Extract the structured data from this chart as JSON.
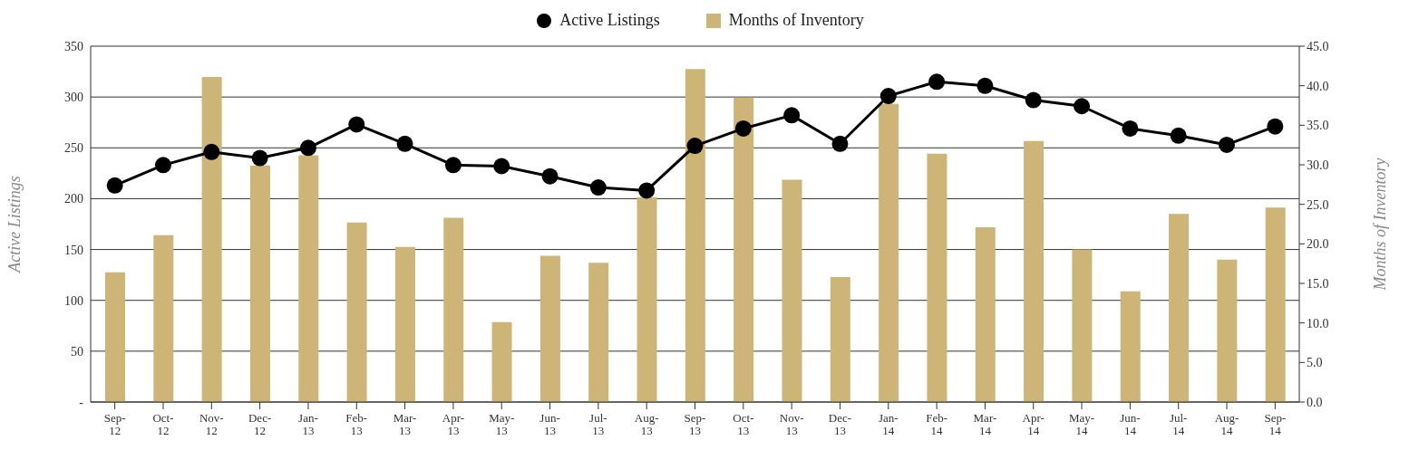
{
  "chart_data": {
    "type": "bar",
    "categories": [
      "Sep-12",
      "Oct-12",
      "Nov-12",
      "Dec-12",
      "Jan-13",
      "Feb-13",
      "Mar-13",
      "Apr-13",
      "May-13",
      "Jun-13",
      "Jul-13",
      "Aug-13",
      "Sep-13",
      "Oct-13",
      "Nov-13",
      "Dec-13",
      "Jan-14",
      "Feb-14",
      "Mar-14",
      "Apr-14",
      "May-14",
      "Jun-14",
      "Jul-14",
      "Aug-14",
      "Sep-14"
    ],
    "series": [
      {
        "name": "Active Listings",
        "type": "line",
        "color": "#000000",
        "marker": "circle",
        "line_style": "solid",
        "values": [
          213,
          233,
          246,
          240,
          250,
          273,
          254,
          233,
          232,
          222,
          211,
          208,
          252,
          269,
          282,
          254,
          301,
          315,
          311,
          297,
          291,
          269,
          262,
          253,
          271
        ]
      },
      {
        "name": "Months of Inventory",
        "axis": "y2",
        "color": "#cdb577",
        "values": [
          16.4,
          21.1,
          41.1,
          29.9,
          31.2,
          22.7,
          19.6,
          23.3,
          10.1,
          18.5,
          17.6,
          25.9,
          42.1,
          38.5,
          28.1,
          15.8,
          37.7,
          31.4,
          22.1,
          33.0,
          19.3,
          14.0,
          23.8,
          18.0,
          24.6
        ]
      }
    ],
    "ylabel": "Active Listings",
    "y2label": "Months of Inventory",
    "ylim": [
      0,
      350
    ],
    "yticks": [
      {
        "value": 0,
        "label": "-"
      },
      50,
      100,
      150,
      200,
      250,
      300,
      350
    ],
    "y2lim": [
      0,
      45
    ],
    "y2ticks": [
      {
        "value": 0,
        "label": "0.0"
      },
      {
        "value": 5,
        "label": "5.0"
      },
      {
        "value": 10,
        "label": "10.0"
      },
      {
        "value": 15,
        "label": "15.0"
      },
      {
        "value": 20,
        "label": "20.0"
      },
      {
        "value": 25,
        "label": "25.0"
      },
      {
        "value": 30,
        "label": "30.0"
      },
      {
        "value": 35,
        "label": "35.0"
      },
      {
        "value": 40,
        "label": "40.0"
      },
      {
        "value": 45,
        "label": "45.0"
      }
    ],
    "grid": "y",
    "legend": "top"
  }
}
